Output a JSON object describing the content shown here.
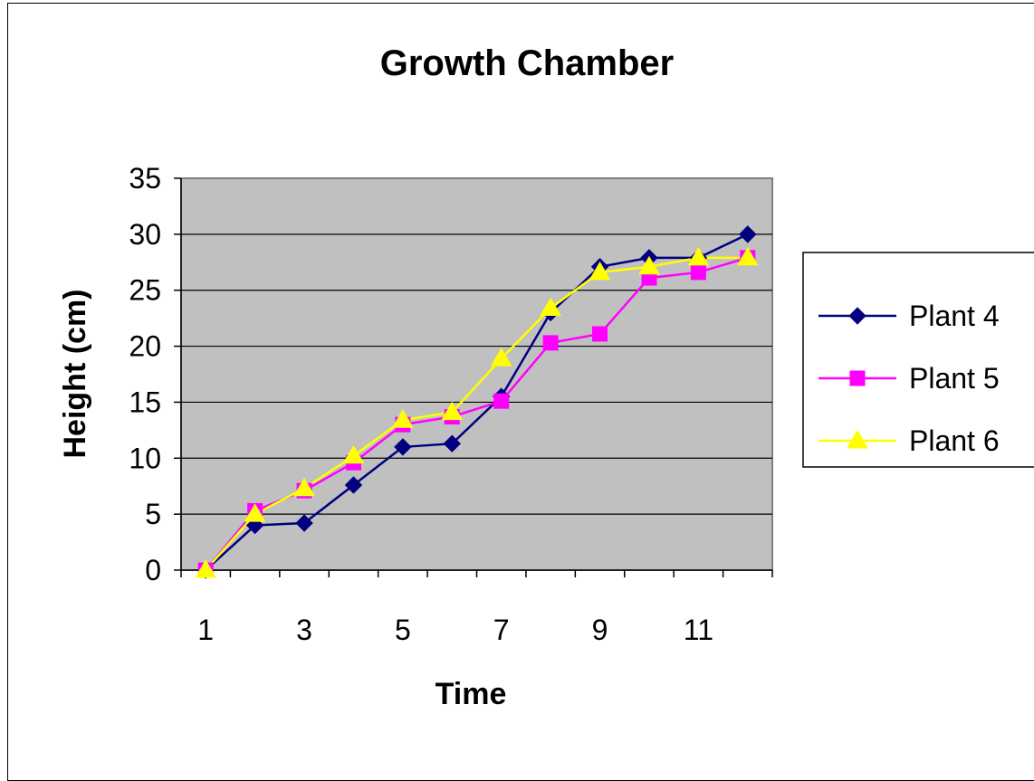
{
  "chart_data": {
    "type": "line",
    "title": "Growth Chamber",
    "xlabel": "Time",
    "ylabel": "Height (cm)",
    "x": [
      1,
      2,
      3,
      4,
      5,
      6,
      7,
      8,
      9,
      10,
      11,
      12
    ],
    "x_tick_labels": [
      "1",
      "3",
      "5",
      "7",
      "9",
      "11"
    ],
    "ylim": [
      0,
      35
    ],
    "y_ticks": [
      0,
      5,
      10,
      15,
      20,
      25,
      30,
      35
    ],
    "grid": true,
    "legend_position": "right",
    "plot_background": "#c0c0c0",
    "series": [
      {
        "name": "Plant 4",
        "color": "#000080",
        "marker": "diamond",
        "values": [
          0,
          4,
          4.2,
          7.6,
          11,
          11.3,
          15.5,
          23,
          27.1,
          27.9,
          27.9,
          30
        ]
      },
      {
        "name": "Plant 5",
        "color": "#ff00ff",
        "marker": "square",
        "values": [
          0,
          5.3,
          7.1,
          9.6,
          13,
          13.7,
          15.1,
          20.3,
          21.1,
          26.1,
          26.6,
          27.9
        ]
      },
      {
        "name": "Plant 6",
        "color": "#ffff00",
        "marker": "triangle",
        "values": [
          0,
          5,
          7.3,
          10.2,
          13.4,
          14.1,
          18.9,
          23.4,
          26.6,
          27.1,
          27.9,
          27.9
        ]
      }
    ]
  }
}
